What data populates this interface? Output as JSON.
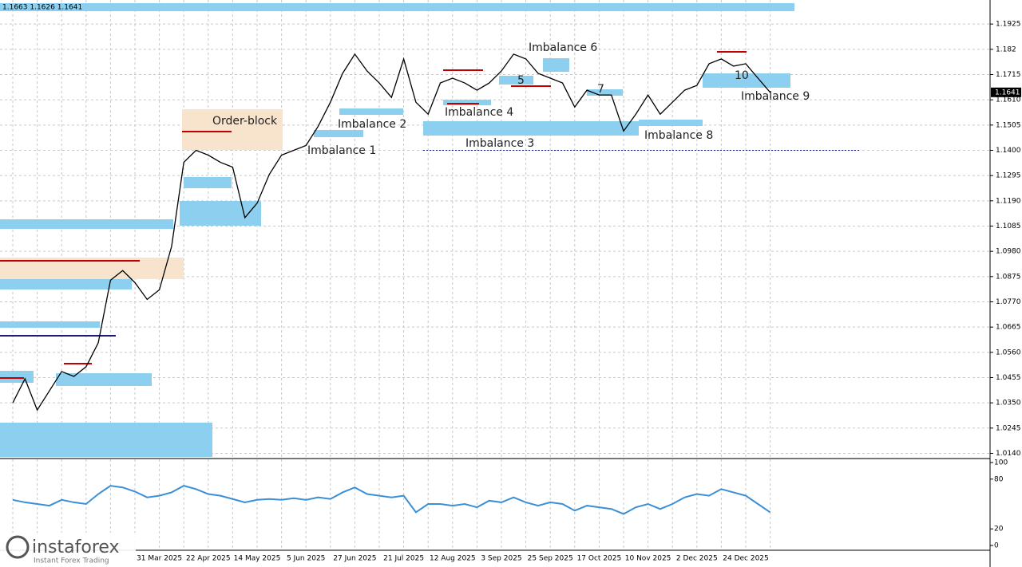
{
  "header": "1.1663 1.1626 1.1641",
  "branding": {
    "name": "instaforex",
    "tagline": "Instant Forex Trading"
  },
  "chart_data": [
    {
      "type": "line",
      "color": "#000000",
      "grid": true,
      "categories": [
        null,
        null,
        null,
        null,
        null,
        null,
        null,
        null,
        null,
        null,
        null,
        null,
        "31 Mar 2025",
        null,
        null,
        null,
        "22 Apr 2025",
        null,
        null,
        null,
        "14 May 2025",
        null,
        null,
        null,
        "5 Jun 2025",
        null,
        null,
        null,
        "27 Jun 2025",
        null,
        null,
        null,
        "21 Jul 2025",
        null,
        null,
        null,
        "12 Aug 2025",
        null,
        null,
        null,
        "3 Sep 2025",
        null,
        null,
        null,
        "25 Sep 2025",
        null,
        null,
        null,
        "17 Oct 2025",
        null,
        null,
        null,
        "10 Nov 2025",
        null,
        null,
        null,
        "2 Dec 2025",
        null,
        null,
        null,
        "24 Dec 2025",
        null,
        null
      ],
      "values": [
        1.035,
        1.045,
        1.032,
        1.04,
        1.048,
        1.046,
        1.05,
        1.06,
        1.086,
        1.09,
        1.085,
        1.078,
        1.082,
        1.1,
        1.135,
        1.14,
        1.138,
        1.135,
        1.133,
        1.112,
        1.118,
        1.13,
        1.138,
        1.14,
        1.142,
        1.15,
        1.16,
        1.172,
        1.18,
        1.173,
        1.168,
        1.162,
        1.178,
        1.16,
        1.155,
        1.168,
        1.17,
        1.168,
        1.165,
        1.168,
        1.173,
        1.18,
        1.178,
        1.172,
        1.17,
        1.168,
        1.158,
        1.165,
        1.163,
        1.163,
        1.148,
        1.155,
        1.163,
        1.155,
        1.16,
        1.165,
        1.167,
        1.176,
        1.178,
        1.175,
        1.176,
        1.17,
        1.1641
      ],
      "ylim": [
        1.0125,
        1.2025
      ],
      "yticks": [
        {
          "value": 1.014,
          "label": "1.0140"
        },
        1.0245,
        {
          "value": 1.035,
          "label": "1.0350"
        },
        1.0455,
        {
          "value": 1.056,
          "label": "1.0560"
        },
        1.0665,
        {
          "value": 1.077,
          "label": "1.0770"
        },
        1.0875,
        {
          "value": 1.098,
          "label": "1.0980"
        },
        1.1085,
        {
          "value": 1.119,
          "label": "1.1190"
        },
        1.1295,
        {
          "value": 1.14,
          "label": "1.1400"
        },
        1.1505,
        {
          "value": 1.161,
          "label": "1.1610"
        },
        1.1715,
        1.182,
        1.1925
      ],
      "level": 1.14,
      "last_price": 1.1641,
      "annotations": [
        "Order-block",
        "Imbalance 1",
        "Imbalance 2",
        "Imbalance 3",
        "Imbalance 4",
        "5",
        "Imbalance 6",
        "7",
        "Imbalance 8",
        "Imbalance 9",
        "10"
      ]
    },
    {
      "type": "line",
      "color": "#3a8fd6",
      "values": [
        55,
        52,
        50,
        48,
        55,
        52,
        50,
        62,
        72,
        70,
        65,
        58,
        60,
        64,
        72,
        68,
        62,
        60,
        56,
        52,
        55,
        56,
        55,
        57,
        55,
        58,
        56,
        64,
        70,
        62,
        60,
        58,
        60,
        40,
        50,
        50,
        48,
        50,
        46,
        54,
        52,
        58,
        52,
        48,
        52,
        50,
        42,
        48,
        46,
        44,
        38,
        46,
        50,
        44,
        50,
        58,
        62,
        60,
        68,
        64,
        60,
        50,
        40
      ],
      "ylim": [
        0,
        100
      ],
      "yticks": [
        100,
        80,
        20,
        0
      ]
    }
  ]
}
